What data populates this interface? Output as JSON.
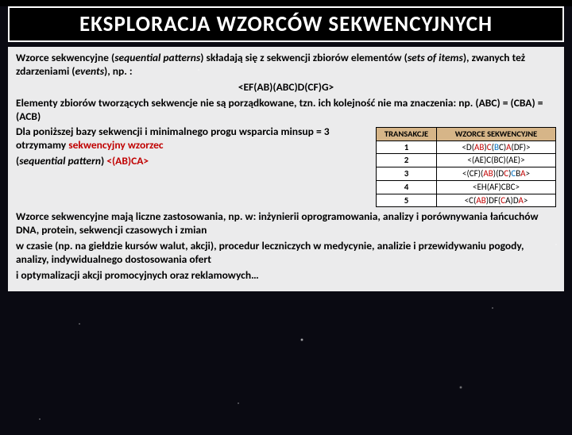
{
  "title": "EKSPLORACJA  WZORCÓW  SEKWENCYJNYCH",
  "p1_a": "Wzorce sekwencyjne (",
  "p1_b": "sequential patterns",
  "p1_c": ") składają się z sekwencji zbiorów elementów (",
  "p1_d": "sets of items",
  "p1_e": "), zwanych też zdarzeniami (",
  "p1_f": "events",
  "p1_g": "), np. :",
  "example": "<EF(AB)(ABC)D(CF)G>",
  "p2": "Elementy zbiorów tworzących sekwencje nie są porządkowane, tzn.  ich kolejność nie ma znaczenia: np. (ABC) = (CBA) = (ACB)",
  "p3_a": "Dla poniższej bazy sekwencji i minimalnego progu wsparcia minsup = 3 otrzymamy ",
  "p3_b": "sekwencyjny wzorzec",
  "p4_a": "(",
  "p4_b": "sequential pattern",
  "p4_c": ") ",
  "p4_d": "<(AB)CA>",
  "table": {
    "headers": [
      "TRANSAKCJE",
      "WZORCE SEKWENCYJNE"
    ],
    "rows": [
      {
        "id": "1",
        "seq": [
          {
            "t": "<D(",
            "c": ""
          },
          {
            "t": "AB",
            "c": "red"
          },
          {
            "t": ")",
            "c": ""
          },
          {
            "t": "C",
            "c": "red"
          },
          {
            "t": "(",
            "c": ""
          },
          {
            "t": "B",
            "c": "blue"
          },
          {
            "t": "C",
            "c": ""
          },
          {
            "t": ")",
            "c": ""
          },
          {
            "t": "A",
            "c": "red"
          },
          {
            "t": "(DF)>",
            "c": ""
          }
        ]
      },
      {
        "id": "2",
        "seq": [
          {
            "t": "<(AE)C(BC)(AE)>",
            "c": ""
          }
        ]
      },
      {
        "id": "3",
        "seq": [
          {
            "t": "<(CF)(",
            "c": ""
          },
          {
            "t": "AB",
            "c": "red"
          },
          {
            "t": ")(D",
            "c": ""
          },
          {
            "t": "C",
            "c": "red"
          },
          {
            "t": ")",
            "c": ""
          },
          {
            "t": "C",
            "c": "blue"
          },
          {
            "t": "B",
            "c": ""
          },
          {
            "t": "A",
            "c": "red"
          },
          {
            "t": ">",
            "c": ""
          }
        ]
      },
      {
        "id": "4",
        "seq": [
          {
            "t": "<EH(AF)CBC>",
            "c": ""
          }
        ]
      },
      {
        "id": "5",
        "seq": [
          {
            "t": "<C(",
            "c": ""
          },
          {
            "t": "AB",
            "c": "red"
          },
          {
            "t": ")DF(",
            "c": ""
          },
          {
            "t": "C",
            "c": "red"
          },
          {
            "t": "A",
            "c": ""
          },
          {
            "t": ")D",
            "c": ""
          },
          {
            "t": "A",
            "c": "red"
          },
          {
            "t": ">",
            "c": ""
          }
        ]
      }
    ]
  },
  "p5": "Wzorce sekwencyjne mają liczne zastosowania, np. w: inżynierii oprogramowania, analizy i porównywania łańcuchów DNA, protein, sekwencji czasowych i zmian",
  "p6": "w czasie (np. na giełdzie kursów walut, akcji), procedur leczniczych w medycynie, analizie i przewidywaniu pogody, analizy, indywidualnego dostosowania ofert",
  "p7": "i optymalizacji akcji promocyjnych oraz reklamowych…",
  "colors": {
    "red": "#c00000",
    "blue": "#0070c0",
    "th_bg": "#d6b588"
  }
}
